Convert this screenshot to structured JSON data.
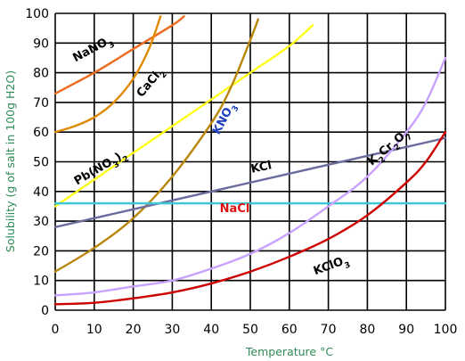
{
  "chart_data": {
    "type": "line",
    "title": "",
    "xlabel": "Temperature °C",
    "ylabel": "Solubility (g of salt in 100g H2O)",
    "xlim": [
      0,
      100
    ],
    "ylim": [
      0,
      100
    ],
    "x_ticks": [
      "0",
      "10",
      "20",
      "30",
      "40",
      "50",
      "60",
      "70",
      "80",
      "90",
      "100"
    ],
    "y_ticks": [
      "0",
      "10",
      "20",
      "30",
      "40",
      "50",
      "60",
      "70",
      "80",
      "90",
      "100"
    ],
    "grid": true,
    "series": [
      {
        "name": "NaNO3",
        "color": "#ed6a1e",
        "x": [
          0,
          10,
          20,
          30,
          33
        ],
        "y": [
          73,
          80,
          88,
          96,
          99
        ]
      },
      {
        "name": "CaCl2",
        "color": "#e08a00",
        "x": [
          0,
          5,
          10,
          15,
          20,
          24,
          27
        ],
        "y": [
          60,
          62,
          65,
          70,
          78,
          88,
          99
        ]
      },
      {
        "name": "Pb(NO3)2",
        "color": "#ffff1a",
        "x": [
          0,
          10,
          20,
          30,
          40,
          50,
          60,
          66
        ],
        "y": [
          35,
          44,
          53,
          62,
          71,
          80,
          89,
          96
        ]
      },
      {
        "name": "KNO3",
        "color": "#b8860b",
        "x": [
          0,
          10,
          20,
          30,
          40,
          45,
          50,
          52
        ],
        "y": [
          13,
          21,
          31,
          45,
          63,
          75,
          91,
          98
        ]
      },
      {
        "name": "KCl",
        "color": "#6b6b9e",
        "x": [
          0,
          20,
          40,
          60,
          80,
          100
        ],
        "y": [
          28,
          34,
          40,
          46,
          52,
          58
        ]
      },
      {
        "name": "NaCl",
        "color": "#40c8d8",
        "x": [
          0,
          20,
          40,
          60,
          80,
          100
        ],
        "y": [
          36,
          36,
          36,
          36,
          36,
          36
        ]
      },
      {
        "name": "K2Cr2O7",
        "color": "#c8a2ff",
        "x": [
          0,
          10,
          20,
          30,
          40,
          50,
          60,
          70,
          80,
          90,
          95,
          100
        ],
        "y": [
          5,
          6,
          8,
          10,
          14,
          19,
          26,
          35,
          45,
          60,
          70,
          85
        ]
      },
      {
        "name": "KClO3",
        "color": "#cc0000",
        "x": [
          0,
          10,
          20,
          30,
          40,
          50,
          60,
          70,
          80,
          90,
          95,
          100
        ],
        "y": [
          2,
          2.5,
          4,
          6,
          9,
          13,
          18,
          24,
          32,
          43,
          50,
          60
        ]
      }
    ],
    "curve_labels": [
      {
        "text": "NaNO3",
        "color": "#000000",
        "x": 10,
        "y": 87,
        "rotate": -28
      },
      {
        "text": "CaCl2",
        "color": "#000000",
        "x": 25,
        "y": 76,
        "rotate": -50
      },
      {
        "text": "Pb(NO3)2",
        "color": "#000000",
        "x": 12,
        "y": 47,
        "rotate": -30
      },
      {
        "text": "KNO3",
        "color": "#1f3fbf",
        "x": 44,
        "y": 64,
        "rotate": -62
      },
      {
        "text": "KCl",
        "color": "#000000",
        "x": 53,
        "y": 47,
        "rotate": -12
      },
      {
        "text": "NaCl",
        "color": "#e01010",
        "x": 46,
        "y": 33,
        "rotate": 0
      },
      {
        "text": "K2Cr2O7",
        "color": "#000000",
        "x": 86,
        "y": 54,
        "rotate": -40
      },
      {
        "text": "KClO3",
        "color": "#000000",
        "x": 71,
        "y": 14,
        "rotate": -20
      }
    ]
  }
}
